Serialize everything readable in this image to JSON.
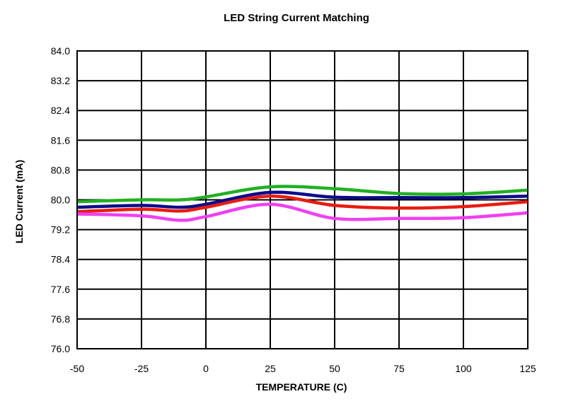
{
  "chart_data": {
    "type": "line",
    "title": "LED String Current Matching",
    "xlabel": "TEMPERATURE (C)",
    "ylabel": "LED Current (mA)",
    "xlim": [
      -50,
      125
    ],
    "ylim": [
      76.0,
      84.0
    ],
    "xticks": [
      -50,
      -25,
      0,
      25,
      50,
      75,
      100,
      125
    ],
    "xtick_labels": [
      "-50",
      "-25",
      "0",
      "25",
      "50",
      "75",
      "100",
      "125"
    ],
    "yticks": [
      76.0,
      76.8,
      77.6,
      78.4,
      79.2,
      80.0,
      80.8,
      81.6,
      82.4,
      83.2,
      84.0
    ],
    "ytick_labels": [
      "76.0",
      "76.8",
      "77.6",
      "78.4",
      "79.2",
      "80.0",
      "80.8",
      "81.6",
      "82.4",
      "83.2",
      "84.0"
    ],
    "grid": true,
    "legend": "none",
    "x": [
      -50,
      -25,
      -10,
      0,
      25,
      50,
      75,
      100,
      125
    ],
    "series": [
      {
        "color": "#22b022",
        "values": [
          79.95,
          80.0,
          80.0,
          80.08,
          80.35,
          80.3,
          80.17,
          80.16,
          80.26
        ]
      },
      {
        "color": "#0a0a8c",
        "values": [
          79.8,
          79.85,
          79.8,
          79.88,
          80.2,
          80.07,
          80.06,
          80.06,
          80.1
        ]
      },
      {
        "color": "#e81c10",
        "values": [
          79.68,
          79.75,
          79.7,
          79.8,
          80.1,
          79.85,
          79.78,
          79.82,
          79.95
        ]
      },
      {
        "color": "#f040f0",
        "values": [
          79.62,
          79.57,
          79.45,
          79.55,
          79.88,
          79.5,
          79.5,
          79.52,
          79.65
        ]
      }
    ]
  }
}
